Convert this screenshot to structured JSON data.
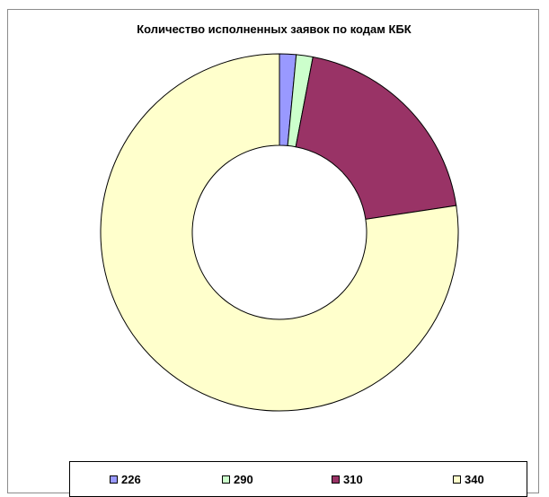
{
  "chart_data": {
    "type": "pie",
    "variant": "doughnut",
    "title": "Количество исполненных заявок по кодам КБК",
    "legend_position": "bottom",
    "categories": [
      "226",
      "290",
      "310",
      "340"
    ],
    "values": [
      1.5,
      1.5,
      19.6,
      77.4
    ],
    "colors": [
      "#9999ff",
      "#ccffcc",
      "#993366",
      "#ffffcc"
    ]
  }
}
